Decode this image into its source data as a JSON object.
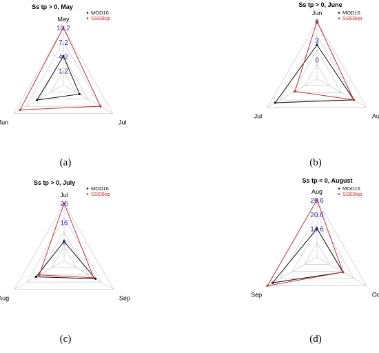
{
  "series_colors": {
    "MOD16": "#111111",
    "SSEBop": "#d42a2a",
    "grid": "#c8c8c8",
    "tick": "#2a2ab8"
  },
  "chart_data": [
    {
      "type": "radar",
      "panel_label": "(a)",
      "title": "Ss tp > 0, May",
      "axes": [
        "May",
        "Jun",
        "Jul"
      ],
      "ticks": [
        "10.2",
        "7.2",
        "4.2",
        "1.2"
      ],
      "scale": [
        -1.8,
        10.2
      ],
      "series": [
        {
          "name": "MOD16",
          "values": [
            4.2,
            4.6,
            2.1
          ]
        },
        {
          "name": "SSEBop",
          "values": [
            10.2,
            8.7,
            7.2
          ]
        }
      ]
    },
    {
      "type": "radar",
      "panel_label": "(b)",
      "title": "Ss tp > 0, June",
      "axes": [
        "Jun",
        "Jul",
        "Aug"
      ],
      "ticks": [
        "6",
        "3",
        "0"
      ],
      "scale": [
        -3,
        6
      ],
      "series": [
        {
          "name": "MOD16",
          "values": [
            2.3,
            4.6,
            3.7
          ]
        },
        {
          "name": "SSEBop",
          "values": [
            6.0,
            1.0,
            3.7
          ]
        }
      ]
    },
    {
      "type": "radar",
      "panel_label": "(c)",
      "title": "Ss tp > 0, July",
      "axes": [
        "Jul",
        "Aug",
        "Sep"
      ],
      "ticks": [
        "26",
        "16",
        "6"
      ],
      "scale": [
        -4,
        26
      ],
      "series": [
        {
          "name": "MOD16",
          "values": [
            6.0,
            13.0,
            15.0
          ]
        },
        {
          "name": "SSEBop",
          "values": [
            26.0,
            11.0,
            14.0
          ]
        }
      ]
    },
    {
      "type": "radar",
      "panel_label": "(d)",
      "title": "Ss tp < 0, August",
      "axes": [
        "Aug",
        "Sep",
        "Oct"
      ],
      "ticks": [
        "26.6",
        "20.6",
        "14.6"
      ],
      "scale": [
        2.6,
        26.6
      ],
      "series": [
        {
          "name": "MOD16",
          "values": [
            14.6,
            24.1,
            15.2
          ]
        },
        {
          "name": "SSEBop",
          "values": [
            26.6,
            26.6,
            15.2
          ]
        }
      ]
    }
  ]
}
